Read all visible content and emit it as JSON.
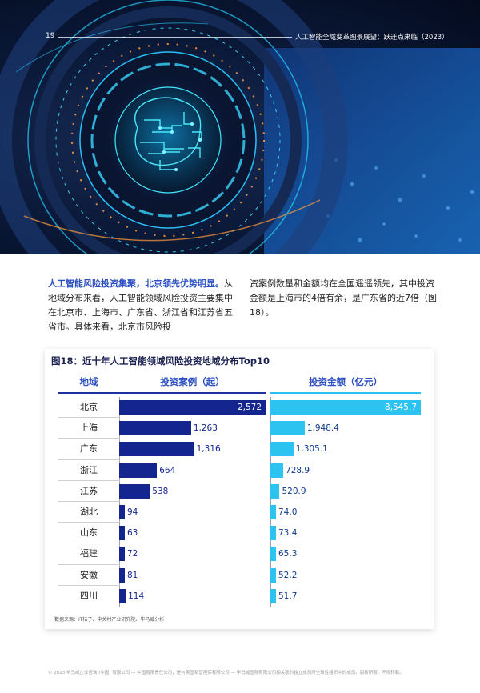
{
  "header": {
    "page_number": "19",
    "title": "人工智能全域变革图景展望：跃迁点来临（2023）"
  },
  "body": {
    "lead": "人工智能风险投资集聚，北京领先优势明显。",
    "left_text": "从地域分布来看，人工智能领域风险投资主要集中在北京市、上海市、广东省、浙江省和江苏省五省市。具体来看，北京市风险投",
    "right_text": "资案例数量和金额均在全国遥遥领先，其中投资金额是上海市的4倍有余，是广东省的近7倍（图18）。"
  },
  "chart_data": {
    "type": "bar",
    "title": "图18：近十年人工智能领域风险投资地域分布Top10",
    "columns": [
      "地域",
      "投资案例（起）",
      "投资金额（亿元）"
    ],
    "categories": [
      "北京",
      "上海",
      "广东",
      "浙江",
      "江苏",
      "湖北",
      "山东",
      "福建",
      "安徽",
      "四川"
    ],
    "series": [
      {
        "name": "投资案例（起）",
        "values": [
          2572,
          1263,
          1316,
          664,
          538,
          94,
          63,
          72,
          81,
          114
        ],
        "labels": [
          "2,572",
          "1,263",
          "1,316",
          "664",
          "538",
          "94",
          "63",
          "72",
          "81",
          "114"
        ],
        "color": "#14258f"
      },
      {
        "name": "投资金额（亿元）",
        "values": [
          8545.7,
          1948.4,
          1305.1,
          728.9,
          520.9,
          74.0,
          73.4,
          65.3,
          52.2,
          51.7
        ],
        "labels": [
          "8,545.7",
          "1,948.4",
          "1,305.1",
          "728.9",
          "520.9",
          "74.0",
          "73.4",
          "65.3",
          "52.2",
          "51.7"
        ],
        "color": "#2dc3f0"
      }
    ],
    "source": "数据来源：IT桔子、中关村产业研究院、毕马威分析"
  },
  "footer": {
    "text": "© 2023 毕马威企业咨询 (中国) 有限公司 — 中国有限责任公司，是与英国私营担保有限公司 — 毕马威国际有限公司相关联的独立成员所全球性组织中的成员。版权所有，不得转载。"
  }
}
